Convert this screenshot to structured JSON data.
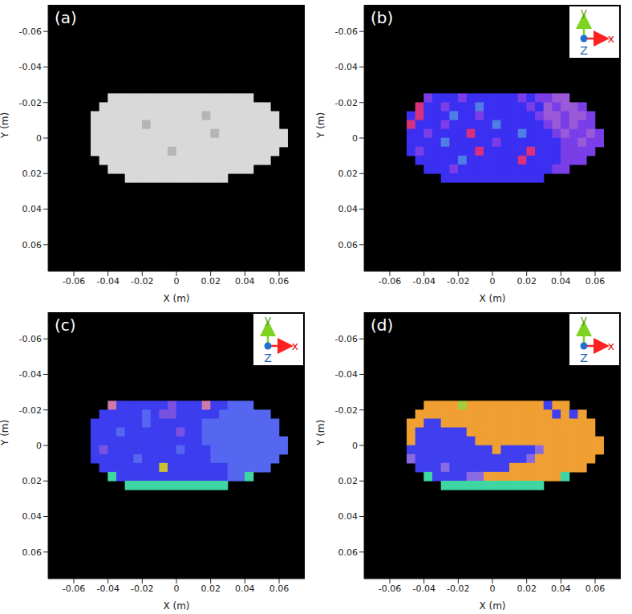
{
  "chart_data": [
    {
      "type": "heatmap",
      "title": "(a)",
      "x_label": "X (m)",
      "y_label": "Y (m)",
      "xlim": [
        -0.075,
        0.075
      ],
      "ylim": [
        -0.075,
        0.075
      ],
      "xticks": [
        -0.06,
        -0.04,
        -0.02,
        0,
        0.02,
        0.04,
        0.06
      ],
      "yticks": [
        -0.06,
        -0.04,
        -0.02,
        0,
        0.02,
        0.04,
        0.06
      ],
      "x": [
        -0.0475,
        -0.0425,
        -0.0375,
        -0.0325,
        -0.0275,
        -0.0225,
        -0.0175,
        -0.0125,
        -0.0075,
        -0.0025,
        0.0025,
        0.0075,
        0.0125,
        0.0175,
        0.0225,
        0.0275,
        0.0325,
        0.0375,
        0.0425,
        0.0475,
        0.0525,
        0.0575,
        0.0625
      ],
      "y": [
        -0.0225,
        -0.0175,
        -0.0125,
        -0.0075,
        -0.0025,
        0.0025,
        0.0075,
        0.0125,
        0.0175,
        0.0225
      ],
      "palette": [
        "#d9d9d9",
        "#b5b5b5"
      ],
      "cells": [
        [
          null,
          null,
          0,
          0,
          0,
          0,
          0,
          0,
          0,
          0,
          0,
          0,
          0,
          0,
          0,
          0,
          0,
          0,
          0,
          null,
          null,
          null,
          null
        ],
        [
          null,
          0,
          0,
          0,
          0,
          0,
          0,
          0,
          0,
          0,
          0,
          0,
          0,
          0,
          0,
          0,
          0,
          0,
          0,
          0,
          0,
          null,
          null
        ],
        [
          0,
          0,
          0,
          0,
          0,
          0,
          0,
          0,
          0,
          0,
          0,
          0,
          0,
          1,
          0,
          0,
          0,
          0,
          0,
          0,
          0,
          0,
          null
        ],
        [
          0,
          0,
          0,
          0,
          0,
          0,
          1,
          0,
          0,
          0,
          0,
          0,
          0,
          0,
          0,
          0,
          0,
          0,
          0,
          0,
          0,
          0,
          null
        ],
        [
          0,
          0,
          0,
          0,
          0,
          0,
          0,
          0,
          0,
          0,
          0,
          0,
          0,
          0,
          1,
          0,
          0,
          0,
          0,
          0,
          0,
          0,
          0
        ],
        [
          0,
          0,
          0,
          0,
          0,
          0,
          0,
          0,
          0,
          0,
          0,
          0,
          0,
          0,
          0,
          0,
          0,
          0,
          0,
          0,
          0,
          0,
          0
        ],
        [
          0,
          0,
          0,
          0,
          0,
          0,
          0,
          0,
          0,
          1,
          0,
          0,
          0,
          0,
          0,
          0,
          0,
          0,
          0,
          0,
          0,
          0,
          null
        ],
        [
          null,
          0,
          0,
          0,
          0,
          0,
          0,
          0,
          0,
          0,
          0,
          0,
          0,
          0,
          0,
          0,
          0,
          0,
          0,
          0,
          0,
          null,
          null
        ],
        [
          null,
          null,
          0,
          0,
          0,
          0,
          0,
          0,
          0,
          0,
          0,
          0,
          0,
          0,
          0,
          0,
          0,
          0,
          0,
          null,
          null,
          null,
          null
        ],
        [
          null,
          null,
          null,
          null,
          0,
          0,
          0,
          0,
          0,
          0,
          0,
          0,
          0,
          0,
          0,
          0,
          null,
          null,
          null,
          null,
          null,
          null,
          null
        ]
      ]
    },
    {
      "type": "heatmap",
      "title": "(b)",
      "x_label": "X (m)",
      "y_label": "Y (m)",
      "annotations": [
        "y",
        "x",
        "Z"
      ],
      "xlim": [
        -0.075,
        0.075
      ],
      "ylim": [
        -0.075,
        0.075
      ],
      "xticks": [
        -0.06,
        -0.04,
        -0.02,
        0,
        0.02,
        0.04,
        0.06
      ],
      "yticks": [
        -0.06,
        -0.04,
        -0.02,
        0,
        0.02,
        0.04,
        0.06
      ],
      "x": [
        -0.0475,
        -0.0425,
        -0.0375,
        -0.0325,
        -0.0275,
        -0.0225,
        -0.0175,
        -0.0125,
        -0.0075,
        -0.0025,
        0.0025,
        0.0075,
        0.0125,
        0.0175,
        0.0225,
        0.0275,
        0.0325,
        0.0375,
        0.0425,
        0.0475,
        0.0525,
        0.0575,
        0.0625
      ],
      "y": [
        -0.0225,
        -0.0175,
        -0.0125,
        -0.0075,
        -0.0025,
        0.0025,
        0.0075,
        0.0125,
        0.0175,
        0.0225
      ],
      "palette": [
        "#3b30f2",
        "#7a3ee8",
        "#d8307a",
        "#4f7ee6",
        "#9a5ad8"
      ],
      "cells": [
        [
          null,
          null,
          1,
          0,
          0,
          0,
          1,
          0,
          0,
          0,
          0,
          0,
          0,
          1,
          0,
          1,
          1,
          4,
          4,
          null,
          null,
          null,
          null
        ],
        [
          null,
          2,
          0,
          0,
          1,
          0,
          0,
          0,
          3,
          0,
          0,
          0,
          0,
          0,
          1,
          0,
          4,
          1,
          4,
          4,
          1,
          null,
          null
        ],
        [
          0,
          2,
          0,
          0,
          0,
          3,
          0,
          0,
          1,
          0,
          0,
          0,
          0,
          0,
          0,
          1,
          4,
          4,
          1,
          4,
          4,
          1,
          null
        ],
        [
          2,
          0,
          0,
          0,
          1,
          0,
          0,
          0,
          0,
          0,
          3,
          0,
          0,
          0,
          0,
          0,
          1,
          4,
          1,
          4,
          1,
          1,
          null
        ],
        [
          0,
          0,
          1,
          0,
          0,
          0,
          0,
          2,
          0,
          0,
          0,
          0,
          0,
          3,
          0,
          0,
          0,
          1,
          4,
          1,
          1,
          4,
          1
        ],
        [
          0,
          0,
          0,
          0,
          3,
          0,
          0,
          0,
          0,
          0,
          1,
          0,
          0,
          0,
          0,
          0,
          0,
          0,
          1,
          1,
          4,
          1,
          1
        ],
        [
          0,
          1,
          0,
          0,
          0,
          0,
          0,
          0,
          2,
          0,
          0,
          0,
          0,
          0,
          2,
          0,
          0,
          0,
          1,
          1,
          1,
          1,
          null
        ],
        [
          null,
          0,
          0,
          0,
          0,
          0,
          3,
          0,
          0,
          0,
          0,
          0,
          0,
          2,
          0,
          0,
          0,
          0,
          1,
          1,
          1,
          null,
          null
        ],
        [
          null,
          null,
          0,
          0,
          0,
          1,
          0,
          0,
          0,
          0,
          0,
          0,
          0,
          0,
          0,
          0,
          0,
          1,
          1,
          null,
          null,
          null,
          null
        ],
        [
          null,
          null,
          null,
          null,
          0,
          0,
          0,
          0,
          0,
          0,
          0,
          0,
          0,
          0,
          0,
          0,
          null,
          null,
          null,
          null,
          null,
          null,
          null
        ]
      ]
    },
    {
      "type": "heatmap",
      "title": "(c)",
      "x_label": "X (m)",
      "y_label": "Y (m)",
      "annotations": [
        "y",
        "x",
        "Z"
      ],
      "xlim": [
        -0.075,
        0.075
      ],
      "ylim": [
        -0.075,
        0.075
      ],
      "xticks": [
        -0.06,
        -0.04,
        -0.02,
        0,
        0.02,
        0.04,
        0.06
      ],
      "yticks": [
        -0.06,
        -0.04,
        -0.02,
        0,
        0.02,
        0.04,
        0.06
      ],
      "x": [
        -0.0475,
        -0.0425,
        -0.0375,
        -0.0325,
        -0.0275,
        -0.0225,
        -0.0175,
        -0.0125,
        -0.0075,
        -0.0025,
        0.0025,
        0.0075,
        0.0125,
        0.0175,
        0.0225,
        0.0275,
        0.0325,
        0.0375,
        0.0425,
        0.0475,
        0.0525,
        0.0575,
        0.0625
      ],
      "y": [
        -0.0225,
        -0.0175,
        -0.0125,
        -0.0075,
        -0.0025,
        0.0025,
        0.0075,
        0.0125,
        0.0175,
        0.0225
      ],
      "palette": [
        "#3d3df0",
        "#5566f0",
        "#7a52e0",
        "#3fd6a4",
        "#c9c030",
        "#d07aa8"
      ],
      "cells": [
        [
          null,
          null,
          5,
          0,
          0,
          0,
          0,
          0,
          0,
          2,
          0,
          0,
          0,
          5,
          0,
          0,
          1,
          1,
          1,
          null,
          null,
          null,
          null
        ],
        [
          null,
          0,
          0,
          0,
          0,
          0,
          1,
          0,
          2,
          2,
          0,
          0,
          0,
          0,
          0,
          1,
          1,
          1,
          1,
          1,
          1,
          null,
          null
        ],
        [
          0,
          0,
          0,
          0,
          0,
          0,
          1,
          0,
          0,
          0,
          0,
          0,
          0,
          1,
          1,
          1,
          1,
          1,
          1,
          1,
          1,
          1,
          null
        ],
        [
          0,
          0,
          0,
          1,
          0,
          0,
          0,
          0,
          0,
          0,
          2,
          0,
          0,
          1,
          1,
          1,
          1,
          1,
          1,
          1,
          1,
          1,
          null
        ],
        [
          0,
          0,
          0,
          0,
          0,
          0,
          0,
          0,
          0,
          0,
          0,
          0,
          0,
          1,
          1,
          1,
          1,
          1,
          1,
          1,
          1,
          1,
          1
        ],
        [
          0,
          2,
          0,
          0,
          0,
          0,
          0,
          0,
          0,
          0,
          1,
          0,
          0,
          0,
          1,
          1,
          1,
          1,
          1,
          1,
          1,
          1,
          1
        ],
        [
          0,
          0,
          0,
          0,
          0,
          1,
          0,
          0,
          0,
          0,
          0,
          0,
          0,
          0,
          1,
          1,
          1,
          1,
          1,
          1,
          1,
          1,
          null
        ],
        [
          null,
          0,
          0,
          0,
          0,
          0,
          0,
          0,
          4,
          0,
          0,
          0,
          0,
          0,
          0,
          0,
          1,
          1,
          1,
          1,
          1,
          null,
          null
        ],
        [
          null,
          null,
          3,
          0,
          0,
          0,
          0,
          0,
          0,
          0,
          0,
          0,
          0,
          0,
          0,
          0,
          1,
          1,
          3,
          null,
          null,
          null,
          null
        ],
        [
          null,
          null,
          null,
          null,
          3,
          3,
          3,
          3,
          3,
          3,
          3,
          3,
          3,
          3,
          3,
          3,
          null,
          null,
          null,
          null,
          null,
          null,
          null
        ]
      ]
    },
    {
      "type": "heatmap",
      "title": "(d)",
      "x_label": "X (m)",
      "y_label": "Y (m)",
      "annotations": [
        "y",
        "x",
        "Z"
      ],
      "xlim": [
        -0.075,
        0.075
      ],
      "ylim": [
        -0.075,
        0.075
      ],
      "xticks": [
        -0.06,
        -0.04,
        -0.02,
        0,
        0.02,
        0.04,
        0.06
      ],
      "yticks": [
        -0.06,
        -0.04,
        -0.02,
        0,
        0.02,
        0.04,
        0.06
      ],
      "x": [
        -0.0475,
        -0.0425,
        -0.0375,
        -0.0325,
        -0.0275,
        -0.0225,
        -0.0175,
        -0.0125,
        -0.0075,
        -0.0025,
        0.0025,
        0.0075,
        0.0125,
        0.0175,
        0.0225,
        0.0275,
        0.0325,
        0.0375,
        0.0425,
        0.0475,
        0.0525,
        0.0575,
        0.0625
      ],
      "y": [
        -0.0225,
        -0.0175,
        -0.0125,
        -0.0075,
        -0.0025,
        0.0025,
        0.0075,
        0.0125,
        0.0175,
        0.0225
      ],
      "palette": [
        "#f0a032",
        "#3f3ff0",
        "#3fd6a4",
        "#8a6ae0",
        "#a0d040"
      ],
      "cells": [
        [
          null,
          null,
          0,
          0,
          0,
          0,
          4,
          0,
          0,
          0,
          0,
          0,
          0,
          0,
          0,
          0,
          1,
          0,
          0,
          null,
          null,
          null,
          null
        ],
        [
          null,
          0,
          0,
          0,
          0,
          0,
          0,
          0,
          0,
          0,
          0,
          0,
          0,
          0,
          0,
          0,
          0,
          1,
          0,
          1,
          0,
          null,
          null
        ],
        [
          0,
          0,
          1,
          1,
          0,
          0,
          0,
          0,
          0,
          0,
          0,
          0,
          0,
          0,
          0,
          0,
          0,
          0,
          0,
          0,
          0,
          0,
          null
        ],
        [
          0,
          1,
          1,
          1,
          1,
          1,
          1,
          0,
          0,
          0,
          0,
          0,
          0,
          0,
          0,
          0,
          0,
          0,
          0,
          0,
          0,
          0,
          null
        ],
        [
          0,
          1,
          1,
          1,
          1,
          1,
          1,
          1,
          0,
          0,
          0,
          0,
          0,
          0,
          0,
          0,
          0,
          0,
          0,
          0,
          0,
          0,
          0
        ],
        [
          1,
          1,
          1,
          1,
          1,
          1,
          1,
          1,
          1,
          1,
          0,
          1,
          1,
          1,
          1,
          3,
          0,
          0,
          0,
          0,
          0,
          0,
          0
        ],
        [
          3,
          1,
          1,
          1,
          1,
          1,
          1,
          1,
          1,
          1,
          1,
          1,
          1,
          1,
          3,
          0,
          0,
          0,
          0,
          0,
          0,
          0,
          null
        ],
        [
          null,
          1,
          1,
          1,
          3,
          1,
          1,
          1,
          1,
          1,
          1,
          1,
          0,
          0,
          0,
          0,
          0,
          0,
          0,
          0,
          0,
          null,
          null
        ],
        [
          null,
          null,
          2,
          1,
          1,
          1,
          1,
          3,
          3,
          0,
          0,
          0,
          0,
          0,
          0,
          0,
          0,
          0,
          2,
          null,
          null,
          null,
          null
        ],
        [
          null,
          null,
          null,
          null,
          2,
          2,
          2,
          2,
          2,
          2,
          2,
          2,
          2,
          2,
          2,
          2,
          null,
          null,
          null,
          null,
          null,
          null,
          null
        ]
      ]
    }
  ]
}
